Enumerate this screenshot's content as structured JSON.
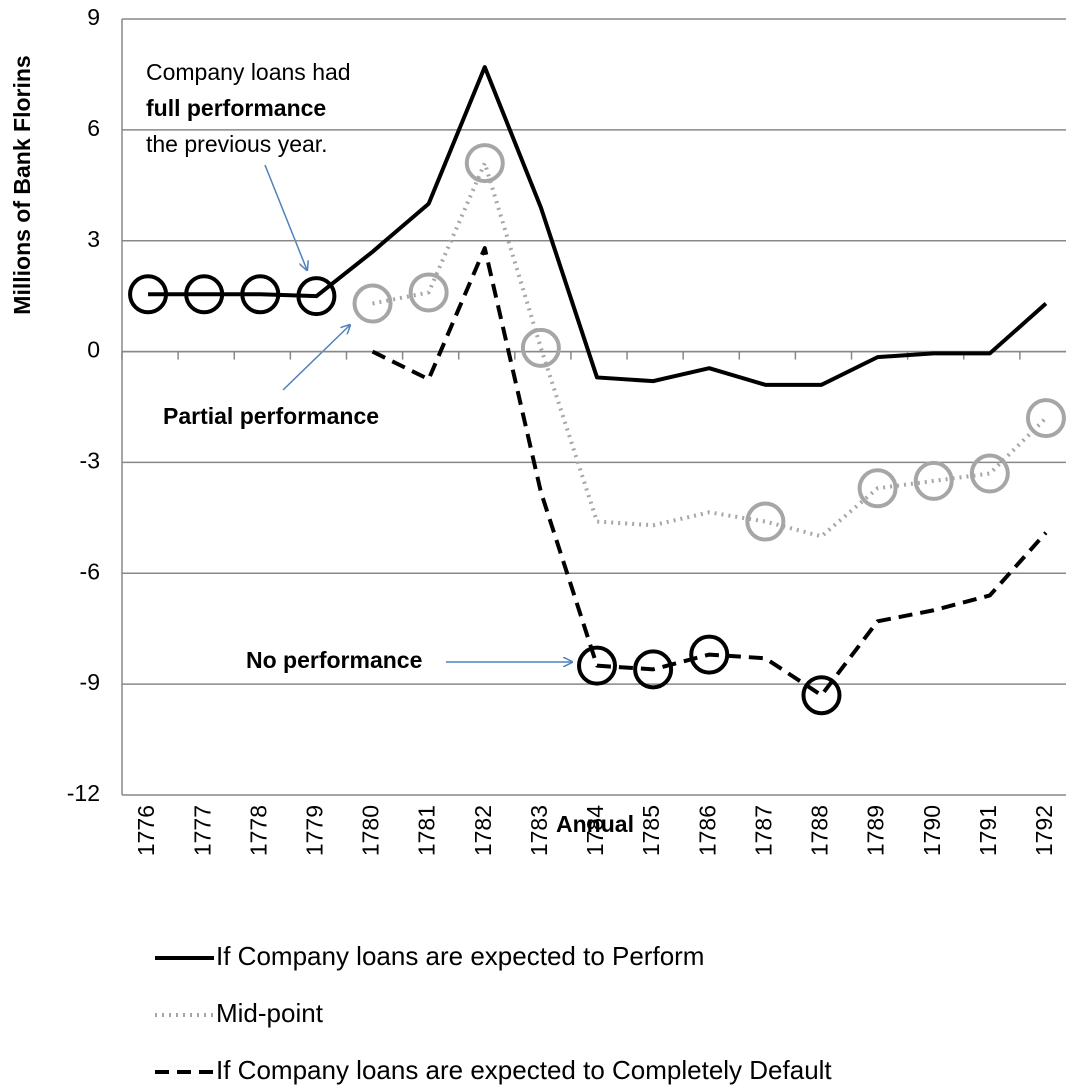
{
  "chart_data": {
    "type": "line",
    "y_label": "Millions of Bank Florins",
    "x_label": "Annual",
    "categories": [
      "1776",
      "1777",
      "1778",
      "1779",
      "1780",
      "1781",
      "1782",
      "1783",
      "1784",
      "1785",
      "1786",
      "1787",
      "1788",
      "1789",
      "1790",
      "1791",
      "1792"
    ],
    "ylim": [
      -12,
      9
    ],
    "yticks": [
      -12,
      -9,
      -6,
      -3,
      0,
      3,
      6,
      9
    ],
    "grid": true,
    "series": [
      {
        "name": "If Company loans are expected to Perform",
        "color": "#000000",
        "style": "solid",
        "values": [
          1.55,
          1.55,
          1.55,
          1.5,
          2.7,
          4.0,
          7.7,
          3.9,
          -0.7,
          -0.8,
          -0.45,
          -0.9,
          -0.9,
          -0.15,
          -0.05,
          -0.05,
          1.3
        ],
        "circled": [
          0,
          1,
          2,
          3
        ],
        "circle_color": "#000000"
      },
      {
        "name": "Mid-point",
        "color": "#a6a6a6",
        "style": "dotted",
        "values": [
          null,
          null,
          null,
          null,
          1.3,
          1.6,
          5.1,
          0.1,
          -4.6,
          -4.7,
          -4.35,
          -4.6,
          -5.0,
          -3.7,
          -3.5,
          -3.3,
          -1.8
        ],
        "circled": [
          4,
          5,
          6,
          7,
          11,
          13,
          14,
          15,
          16
        ],
        "circle_color": "#a6a6a6"
      },
      {
        "name": "If Company loans are expected to Completely Default",
        "color": "#000000",
        "style": "dashed",
        "values": [
          null,
          null,
          null,
          null,
          0.0,
          -0.75,
          2.8,
          -3.8,
          -8.5,
          -8.6,
          -8.2,
          -8.3,
          -9.3,
          -7.3,
          -7.0,
          -6.6,
          -4.9
        ],
        "circled": [
          8,
          9,
          10,
          12
        ],
        "circle_color": "#000000"
      }
    ],
    "annotations": [
      "Company loans  had",
      "full performance",
      "the previous year.",
      "Partial performance",
      "No performance"
    ]
  }
}
